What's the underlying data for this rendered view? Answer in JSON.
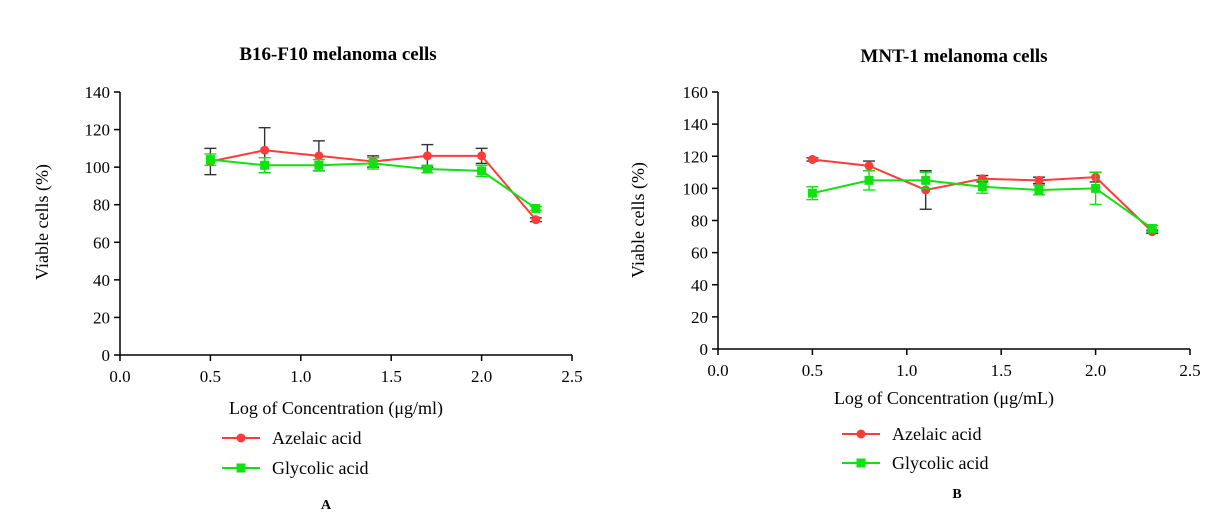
{
  "chart_data": [
    {
      "type": "line",
      "panel_label": "A",
      "title": "B16-F10 melanoma cells",
      "xlabel": "Log of Concentration (μg/ml)",
      "ylabel": "Viable cells (%)",
      "xlim": [
        0,
        2.5
      ],
      "ylim": [
        0,
        140
      ],
      "x_ticks": [
        "0.0",
        "0.5",
        "1.0",
        "1.5",
        "2.0",
        "2.5"
      ],
      "y_ticks": [
        "0",
        "20",
        "40",
        "60",
        "80",
        "100",
        "120",
        "140"
      ],
      "grid": false,
      "legend_position": "bottom",
      "series": [
        {
          "name": "Azelaic acid",
          "color": "#ff3b3b",
          "marker": "circle",
          "x": [
            0.5,
            0.8,
            1.1,
            1.4,
            1.7,
            2.0,
            2.3
          ],
          "y": [
            103,
            109,
            106,
            103,
            106,
            106,
            72
          ],
          "error": [
            7,
            12,
            8,
            3,
            6,
            4,
            1
          ]
        },
        {
          "name": "Glycolic acid",
          "color": "#11e011",
          "marker": "square",
          "x": [
            0.5,
            0.8,
            1.1,
            1.4,
            1.7,
            2.0,
            2.3
          ],
          "y": [
            104,
            101,
            101,
            102,
            99,
            98,
            78
          ],
          "error": [
            3,
            4,
            3,
            3,
            2,
            3,
            1
          ]
        }
      ]
    },
    {
      "type": "line",
      "panel_label": "B",
      "title": "MNT-1 melanoma cells",
      "xlabel": "Log of Concentration (μg/mL)",
      "ylabel": "Viable cells (%)",
      "xlim": [
        0,
        2.5
      ],
      "ylim": [
        0,
        160
      ],
      "x_ticks": [
        "0.0",
        "0.5",
        "1.0",
        "1.5",
        "2.0",
        "2.5"
      ],
      "y_ticks": [
        "0",
        "20",
        "40",
        "60",
        "80",
        "100",
        "120",
        "140",
        "160"
      ],
      "grid": false,
      "legend_position": "bottom",
      "series": [
        {
          "name": "Azelaic acid",
          "color": "#ff3b3b",
          "marker": "circle",
          "x": [
            0.5,
            0.8,
            1.1,
            1.4,
            1.7,
            2.0,
            2.3
          ],
          "y": [
            118,
            114,
            99,
            106,
            105,
            107,
            73
          ],
          "error": [
            1,
            3,
            12,
            2,
            2,
            3,
            1
          ]
        },
        {
          "name": "Glycolic acid",
          "color": "#11e011",
          "marker": "square",
          "x": [
            0.5,
            0.8,
            1.1,
            1.4,
            1.7,
            2.0,
            2.3
          ],
          "y": [
            97,
            105,
            105,
            101,
            99,
            100,
            75
          ],
          "error": [
            4,
            6,
            5,
            4,
            3,
            10,
            2
          ]
        }
      ]
    }
  ]
}
